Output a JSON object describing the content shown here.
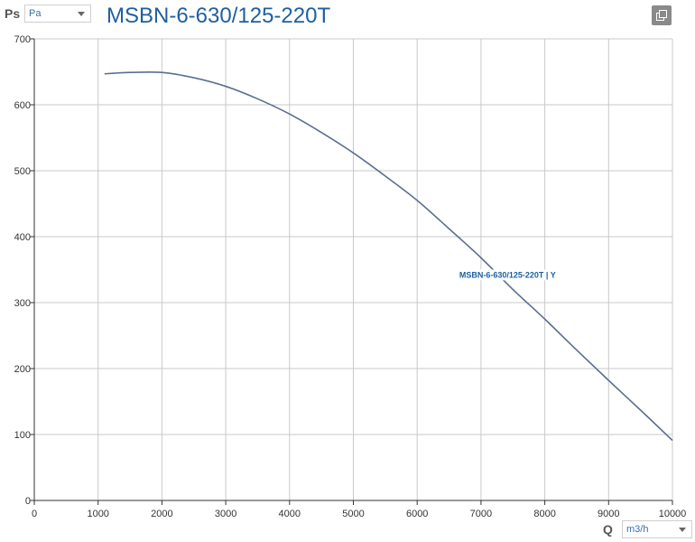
{
  "header": {
    "y_quantity": "Ps",
    "y_unit": "Pa",
    "title": "MSBN-6-630/125-220T",
    "x_quantity": "Q",
    "x_unit": "m3/h"
  },
  "icons": {
    "copy": "copy-icon",
    "dropdown": "chevron-down-icon"
  },
  "colors": {
    "curve": "#5a6f8f",
    "title": "#1f5fa0",
    "grid": "#c9c9c9",
    "axis": "#333333"
  },
  "chart_data": {
    "type": "line",
    "title": "MSBN-6-630/125-220T",
    "xlabel": "Q",
    "ylabel": "Ps",
    "xlim": [
      0,
      10000
    ],
    "ylim": [
      0,
      700
    ],
    "x_ticks": [
      "0",
      "1000",
      "2000",
      "3000",
      "4000",
      "5000",
      "6000",
      "7000",
      "8000",
      "9000",
      "10000"
    ],
    "y_ticks": [
      "0",
      "100",
      "200",
      "300",
      "400",
      "500",
      "600",
      "700"
    ],
    "grid": true,
    "series": [
      {
        "name": "MSBN-6-630/125-220T | Y",
        "x": [
          1100,
          1500,
          2000,
          2500,
          3000,
          3500,
          4000,
          4500,
          5000,
          5500,
          6000,
          6500,
          7000,
          7500,
          8000,
          8500,
          9000,
          9500,
          10000
        ],
        "y": [
          647,
          649,
          649,
          641,
          628,
          609,
          586,
          558,
          527,
          492,
          455,
          412,
          368,
          320,
          275,
          228,
          182,
          137,
          91
        ]
      }
    ]
  }
}
